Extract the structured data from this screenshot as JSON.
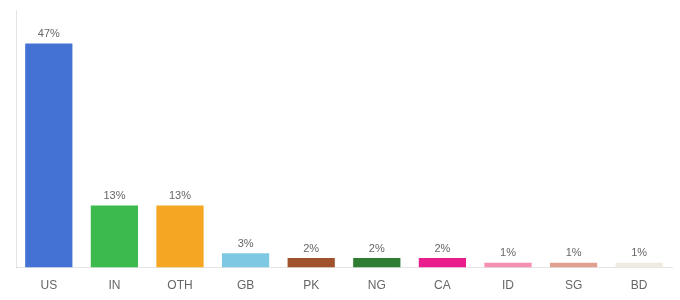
{
  "chart_data": {
    "type": "bar",
    "categories": [
      "US",
      "IN",
      "OTH",
      "GB",
      "PK",
      "NG",
      "CA",
      "ID",
      "SG",
      "BD"
    ],
    "values": [
      47,
      13,
      13,
      3,
      2,
      2,
      2,
      1,
      1,
      1
    ],
    "value_labels": [
      "47%",
      "13%",
      "13%",
      "3%",
      "2%",
      "2%",
      "2%",
      "1%",
      "1%",
      "1%"
    ],
    "colors": [
      "#4472d4",
      "#3dba4e",
      "#f5a623",
      "#7ec8e3",
      "#a0522d",
      "#2e7d32",
      "#e91e8c",
      "#f48fb1",
      "#e0a090",
      "#f0ebe0"
    ],
    "ylim": [
      0,
      54
    ],
    "data_labels": true,
    "tick_labels": "x",
    "grid": false
  }
}
